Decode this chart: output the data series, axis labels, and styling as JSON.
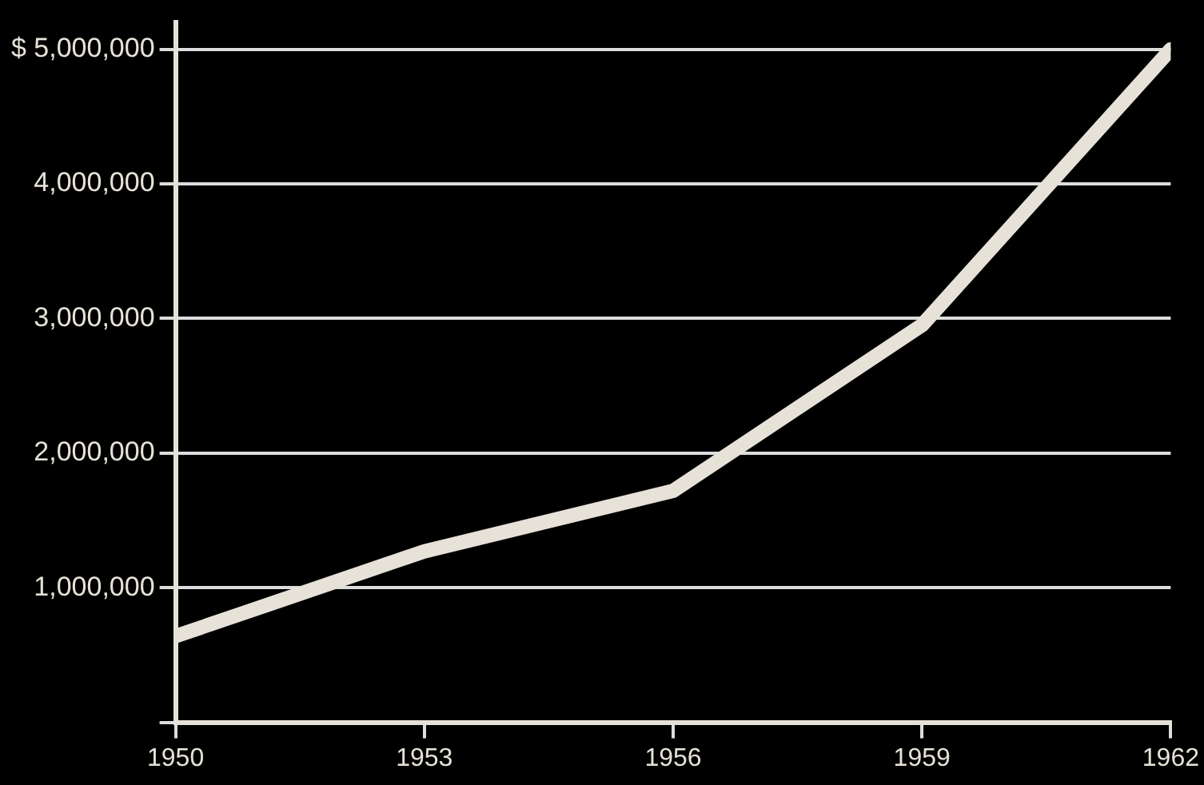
{
  "chart_data": {
    "type": "line",
    "x": [
      1950,
      1953,
      1956,
      1959,
      1962
    ],
    "series": [
      {
        "color": "#e6e2d8",
        "values": [
          640000,
          1270000,
          1720000,
          2950000,
          5000000
        ]
      }
    ],
    "xlim": [
      1950,
      1962
    ],
    "xticks": [
      1950,
      1953,
      1956,
      1959,
      1962
    ],
    "ylim": [
      0,
      5200000
    ],
    "yticks": [
      {
        "value": 0,
        "label": null
      },
      {
        "value": 1000000,
        "label": "1,000,000"
      },
      {
        "value": 2000000,
        "label": "2,000,000"
      },
      {
        "value": 3000000,
        "label": "3,000,000"
      },
      {
        "value": 4000000,
        "label": "4,000,000"
      },
      {
        "value": 5000000,
        "label": "$ 5,000,000"
      }
    ],
    "grid": "y",
    "legend": false,
    "marker": "none",
    "line_style": "solid"
  }
}
